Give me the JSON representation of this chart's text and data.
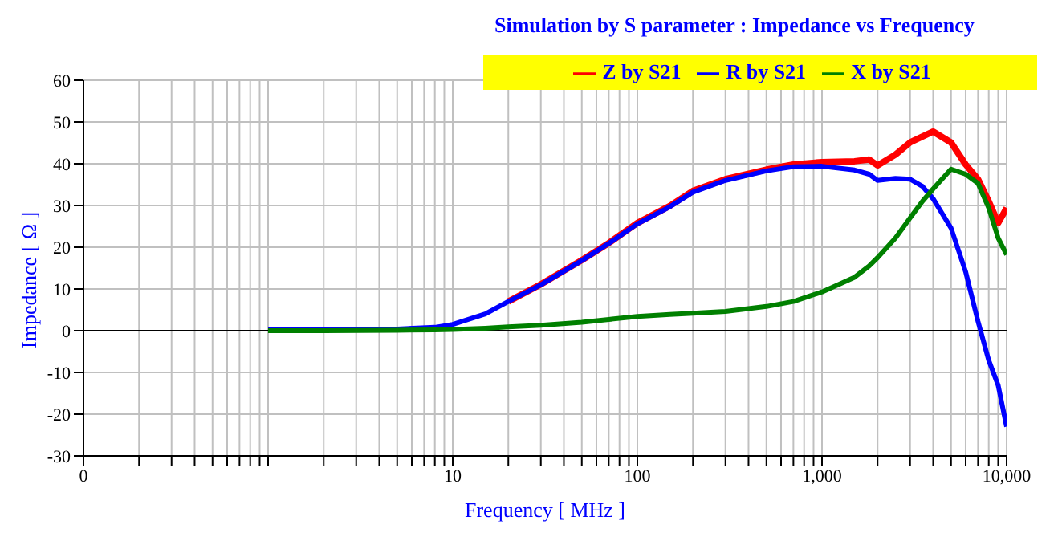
{
  "chart_data": {
    "type": "line",
    "title": "Simulation by S parameter : Impedance vs Frequency",
    "xlabel": "Frequency [ MHz ]",
    "ylabel": "Impedance [ Ω ]",
    "x": [
      1,
      2,
      5,
      8,
      10,
      15,
      20,
      30,
      50,
      70,
      100,
      150,
      200,
      300,
      500,
      700,
      1000,
      1500,
      1800,
      2000,
      2500,
      3000,
      3500,
      4000,
      5000,
      6000,
      7000,
      8000,
      9000,
      10000
    ],
    "series": [
      {
        "name": "Z by S21",
        "color": "#ff0000",
        "values": [
          null,
          null,
          null,
          null,
          null,
          null,
          7,
          11.1,
          16.9,
          21,
          25.8,
          29.9,
          33.5,
          36.3,
          38.6,
          39.8,
          40.4,
          40.6,
          41,
          39.6,
          42.2,
          45.1,
          46.5,
          47.7,
          45.1,
          39.8,
          36.3,
          31,
          25.8,
          29.4
        ]
      },
      {
        "name": "R by S21",
        "color": "#0000ff",
        "values": [
          0.2,
          0.2,
          0.4,
          0.8,
          1.5,
          4,
          7,
          11,
          16.8,
          20.9,
          25.6,
          29.7,
          33.2,
          36,
          38.3,
          39.3,
          39.4,
          38.5,
          37.5,
          36,
          36.5,
          36.3,
          34.6,
          31.6,
          24.6,
          14.1,
          2.2,
          -7.1,
          -13.1,
          -23
        ]
      },
      {
        "name": "X by S21",
        "color": "#008000",
        "values": [
          0,
          0,
          0.1,
          0.2,
          0.3,
          0.6,
          0.9,
          1.3,
          2,
          2.7,
          3.4,
          3.9,
          4.2,
          4.6,
          5.8,
          7,
          9.3,
          12.8,
          15.5,
          17.5,
          22.2,
          27,
          31,
          34,
          38.7,
          37.5,
          35.3,
          29.4,
          22.2,
          18.2
        ]
      }
    ],
    "log": "x",
    "xlim": [
      0.1,
      10000
    ],
    "xticks": [
      {
        "value": 0.1,
        "label": "0"
      },
      {
        "value": 0.2,
        "label": null
      },
      {
        "value": 0.3,
        "label": null
      },
      {
        "value": 0.4,
        "label": null
      },
      {
        "value": 0.5,
        "label": null
      },
      {
        "value": 0.6,
        "label": null
      },
      {
        "value": 0.7,
        "label": null
      },
      {
        "value": 0.8,
        "label": null
      },
      {
        "value": 0.9,
        "label": null
      },
      {
        "value": 1,
        "label": null
      },
      {
        "value": 2,
        "label": null
      },
      {
        "value": 3,
        "label": null
      },
      {
        "value": 4,
        "label": null
      },
      {
        "value": 5,
        "label": null
      },
      {
        "value": 6,
        "label": null
      },
      {
        "value": 7,
        "label": null
      },
      {
        "value": 8,
        "label": null
      },
      {
        "value": 9,
        "label": null
      },
      10,
      {
        "value": 20,
        "label": null
      },
      {
        "value": 30,
        "label": null
      },
      {
        "value": 40,
        "label": null
      },
      {
        "value": 50,
        "label": null
      },
      {
        "value": 60,
        "label": null
      },
      {
        "value": 70,
        "label": null
      },
      {
        "value": 80,
        "label": null
      },
      {
        "value": 90,
        "label": null
      },
      100,
      {
        "value": 200,
        "label": null
      },
      {
        "value": 300,
        "label": null
      },
      {
        "value": 400,
        "label": null
      },
      {
        "value": 500,
        "label": null
      },
      {
        "value": 600,
        "label": null
      },
      {
        "value": 700,
        "label": null
      },
      {
        "value": 800,
        "label": null
      },
      {
        "value": 900,
        "label": null
      },
      {
        "value": 1000,
        "label": "1,000"
      },
      {
        "value": 2000,
        "label": null
      },
      {
        "value": 3000,
        "label": null
      },
      {
        "value": 4000,
        "label": null
      },
      {
        "value": 5000,
        "label": null
      },
      {
        "value": 6000,
        "label": null
      },
      {
        "value": 7000,
        "label": null
      },
      {
        "value": 8000,
        "label": null
      },
      {
        "value": 9000,
        "label": null
      },
      {
        "value": 10000,
        "label": "10,000"
      }
    ],
    "ylim": [
      -30,
      60
    ],
    "yticks": [
      -30,
      -20,
      -10,
      0,
      10,
      20,
      30,
      40,
      50,
      60
    ],
    "grid": true,
    "legend": "top",
    "marker": "none",
    "line_style": "solid"
  }
}
